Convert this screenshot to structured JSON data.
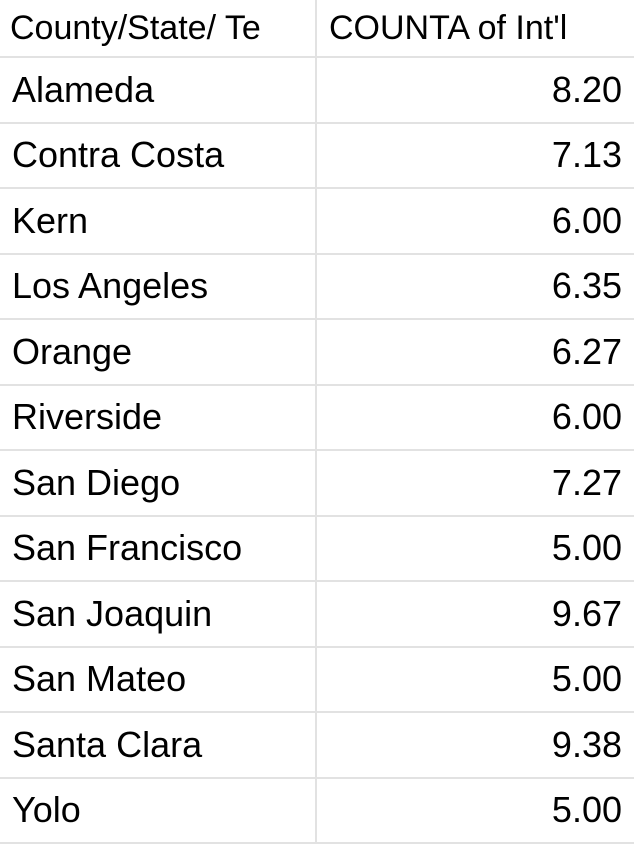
{
  "table": {
    "columns": [
      "County/State/ Te",
      "COUNTA of Int'l"
    ],
    "rows": [
      {
        "name": "Alameda",
        "value": "8.20"
      },
      {
        "name": "Contra Costa",
        "value": "7.13"
      },
      {
        "name": "Kern",
        "value": "6.00"
      },
      {
        "name": "Los Angeles",
        "value": "6.35"
      },
      {
        "name": "Orange",
        "value": "6.27"
      },
      {
        "name": "Riverside",
        "value": "6.00"
      },
      {
        "name": "San Diego",
        "value": "7.27"
      },
      {
        "name": "San Francisco",
        "value": "5.00"
      },
      {
        "name": "San Joaquin",
        "value": "9.67"
      },
      {
        "name": "San Mateo",
        "value": "5.00"
      },
      {
        "name": "Santa Clara",
        "value": "9.38"
      },
      {
        "name": "Yolo",
        "value": "5.00"
      }
    ]
  },
  "colors": {
    "gridline": "#e2e2e2",
    "text": "#000000",
    "background": "#ffffff"
  }
}
